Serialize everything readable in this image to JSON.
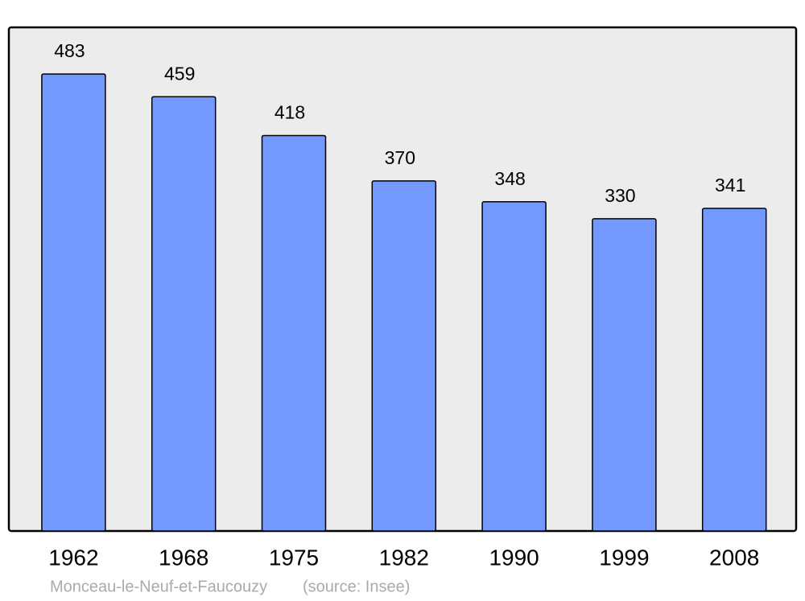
{
  "chart_data": {
    "type": "bar",
    "categories": [
      "1962",
      "1968",
      "1975",
      "1982",
      "1990",
      "1999",
      "2008"
    ],
    "values": [
      483,
      459,
      418,
      370,
      348,
      330,
      341
    ],
    "color": "#7399ff",
    "caption": "Monceau-le-Neuf-et-Faucouzy",
    "source": "(source: Insee)"
  }
}
